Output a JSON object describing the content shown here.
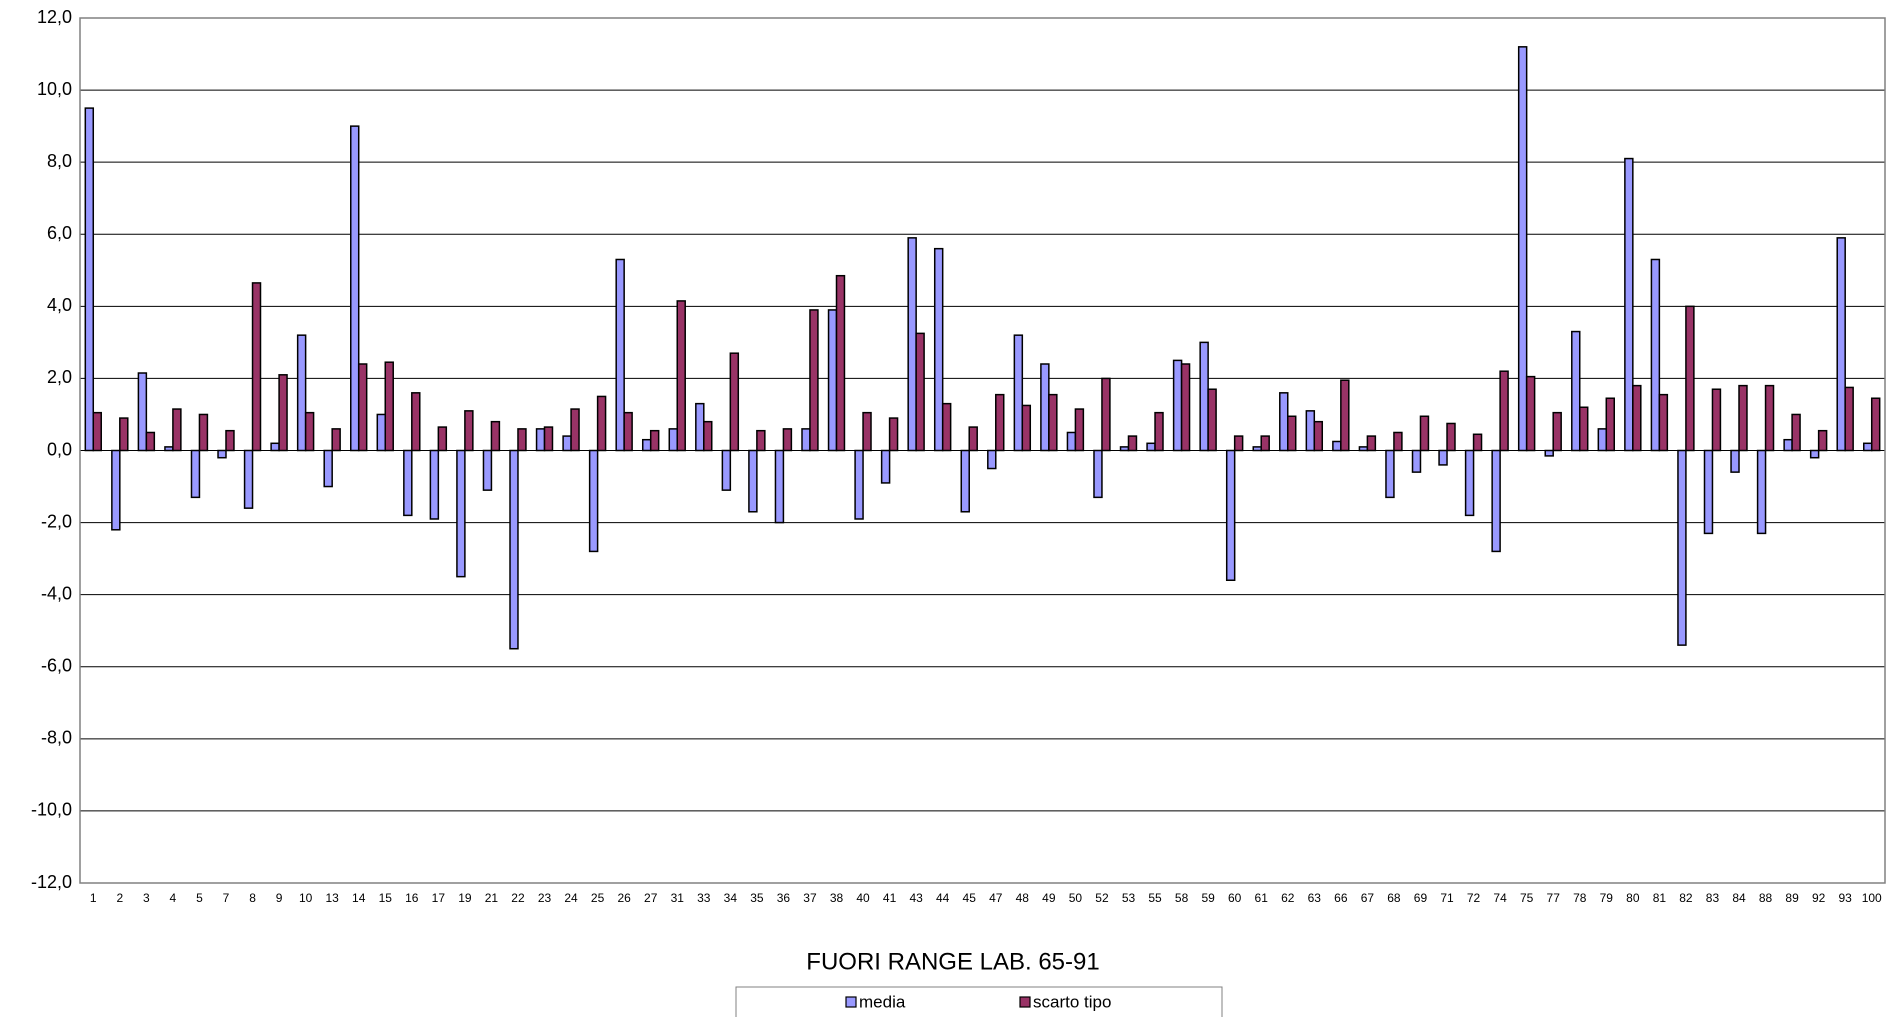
{
  "chart_data": {
    "type": "bar",
    "title": "FUORI RANGE LAB. 65-91",
    "categories": [
      "1",
      "2",
      "3",
      "4",
      "5",
      "7",
      "8",
      "9",
      "10",
      "13",
      "14",
      "15",
      "16",
      "17",
      "19",
      "21",
      "22",
      "23",
      "24",
      "25",
      "26",
      "27",
      "31",
      "33",
      "34",
      "35",
      "36",
      "37",
      "38",
      "40",
      "41",
      "43",
      "44",
      "45",
      "47",
      "48",
      "49",
      "50",
      "52",
      "53",
      "55",
      "58",
      "59",
      "60",
      "61",
      "62",
      "63",
      "66",
      "67",
      "68",
      "69",
      "71",
      "72",
      "74",
      "75",
      "77",
      "78",
      "79",
      "80",
      "81",
      "82",
      "83",
      "84",
      "88",
      "89",
      "92",
      "93",
      "100"
    ],
    "series": [
      {
        "name": "media",
        "color": "#9999ff",
        "values": [
          9.5,
          -2.2,
          2.15,
          0.1,
          -1.3,
          -0.2,
          -1.6,
          0.2,
          3.2,
          -1.0,
          9.0,
          1.0,
          -1.8,
          -1.9,
          -3.5,
          -1.1,
          -5.5,
          0.6,
          0.4,
          -2.8,
          5.3,
          0.3,
          0.6,
          1.3,
          -1.1,
          -1.7,
          -2.0,
          0.6,
          3.9,
          -1.9,
          -0.9,
          5.9,
          5.6,
          -1.7,
          -0.5,
          3.2,
          2.4,
          0.5,
          -1.3,
          0.1,
          0.2,
          2.5,
          3.0,
          -3.6,
          0.1,
          1.6,
          1.1,
          0.25,
          0.1,
          -1.3,
          -0.6,
          -0.4,
          -1.8,
          -2.8,
          11.2,
          -0.15,
          3.3,
          0.6,
          8.1,
          5.3,
          -5.4,
          -2.3,
          -0.6,
          -2.3,
          0.3,
          -0.2,
          5.9,
          0.2
        ]
      },
      {
        "name": "scarto tipo",
        "color": "#993366",
        "values": [
          1.05,
          0.9,
          0.5,
          1.15,
          1.0,
          0.55,
          4.65,
          2.1,
          1.05,
          0.6,
          2.4,
          2.45,
          1.6,
          0.65,
          1.1,
          0.8,
          0.6,
          0.65,
          1.15,
          1.5,
          1.05,
          0.55,
          4.15,
          0.8,
          2.7,
          0.55,
          0.6,
          3.9,
          4.85,
          1.05,
          0.9,
          3.25,
          1.3,
          0.65,
          1.55,
          1.25,
          1.55,
          1.15,
          2.0,
          0.4,
          1.05,
          2.4,
          1.7,
          0.4,
          0.4,
          0.95,
          0.8,
          1.95,
          0.4,
          0.5,
          0.95,
          0.75,
          0.45,
          2.2,
          2.05,
          1.05,
          1.2,
          1.45,
          1.8,
          1.55,
          4.0,
          1.7,
          1.8,
          1.8,
          1.0,
          0.55,
          1.75,
          1.45
        ]
      }
    ],
    "ylim": [
      -12,
      12
    ],
    "yticks": [
      {
        "value": -12,
        "label": "-12,0"
      },
      {
        "value": -10,
        "label": "-10,0"
      },
      {
        "value": -8,
        "label": "-8,0"
      },
      {
        "value": -6,
        "label": "-6,0"
      },
      {
        "value": -4,
        "label": "-4,0"
      },
      {
        "value": -2,
        "label": "-2,0"
      },
      {
        "value": 0,
        "label": "0,0"
      },
      {
        "value": 2,
        "label": "2,0"
      },
      {
        "value": 4,
        "label": "4,0"
      },
      {
        "value": 6,
        "label": "6,0"
      },
      {
        "value": 8,
        "label": "8,0"
      },
      {
        "value": 10,
        "label": "10,0"
      },
      {
        "value": 12,
        "label": "12,0"
      }
    ],
    "grid": true,
    "legend": "bottom"
  }
}
